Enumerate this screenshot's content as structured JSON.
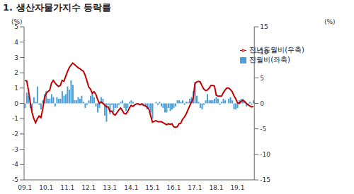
{
  "chart_data": {
    "type": "bar_line",
    "title": "1. 생산자물가지수 등락률",
    "y_label": "(%)",
    "y2_label": "(%)",
    "categories": [
      "09.1",
      null,
      null,
      null,
      null,
      null,
      null,
      null,
      null,
      null,
      null,
      null,
      "10.1",
      null,
      null,
      null,
      null,
      null,
      null,
      null,
      null,
      null,
      null,
      null,
      "11.1",
      null,
      null,
      null,
      null,
      null,
      null,
      null,
      null,
      null,
      null,
      null,
      "12.1",
      null,
      null,
      null,
      null,
      null,
      null,
      null,
      null,
      null,
      null,
      null,
      "13.1",
      null,
      null,
      null,
      null,
      null,
      null,
      null,
      null,
      null,
      null,
      null,
      "14.1",
      null,
      null,
      null,
      null,
      null,
      null,
      null,
      null,
      null,
      null,
      null,
      "15.1",
      null,
      null,
      null,
      null,
      null,
      null,
      null,
      null,
      null,
      null,
      null,
      "16.1",
      null,
      null,
      null,
      null,
      null,
      null,
      null,
      null,
      null,
      null,
      null,
      "17.1",
      null,
      null,
      null,
      null,
      null,
      null,
      null,
      null,
      null,
      null,
      null,
      "18.1",
      null,
      null,
      null,
      null,
      null,
      null,
      null,
      null,
      null,
      null,
      null,
      "19.1",
      null,
      null,
      null,
      null,
      null,
      null,
      null,
      null,
      null
    ],
    "series": [
      {
        "name": "전월비(좌축)",
        "type": "bar",
        "color": "#4a9fd8",
        "values": [
          -0.3,
          0.7,
          0.5,
          -0.3,
          -0.5,
          0.4,
          0.1,
          1.1,
          -0.1,
          -0.4,
          0.2,
          0.6,
          0.8,
          0.3,
          0.3,
          0.6,
          0.4,
          -0.2,
          0.4,
          0.3,
          0.3,
          0.8,
          0.5,
          0.6,
          1.1,
          0.9,
          1.5,
          1.2,
          0.2,
          0.2,
          0.4,
          0.3,
          0.5,
          0.1,
          -0.3,
          -0.1,
          0.2,
          0.5,
          0.7,
          0.4,
          -0.2,
          -0.6,
          -0.3,
          0.4,
          0.3,
          -0.8,
          -1.2,
          -0.1,
          -0.7,
          -0.1,
          -0.6,
          -0.3,
          -0.3,
          -0.1,
          0.1,
          0.2,
          -0.3,
          -0.5,
          -0.3,
          0.1,
          0.2,
          0.1,
          0.0,
          0.0,
          -0.1,
          0.0,
          -0.1,
          -0.1,
          -0.2,
          -0.4,
          -0.3,
          -0.6,
          -1.0,
          0.0,
          0.1,
          -0.1,
          0.1,
          -0.2,
          -0.3,
          -0.6,
          -0.6,
          -0.3,
          -0.5,
          -0.4,
          -0.3,
          -0.2,
          0.2,
          0.2,
          0.1,
          0.2,
          -0.1,
          0.1,
          0.1,
          0.3,
          0.4,
          0.8,
          1.4,
          0.5,
          0.1,
          -0.3,
          -0.4,
          -0.1,
          0.2,
          0.6,
          0.2,
          0.2,
          0.2,
          0.3,
          0.4,
          0.3,
          -0.1,
          0.1,
          0.3,
          0.2,
          0.0,
          0.3,
          0.4,
          0.2,
          -0.4,
          -0.4,
          -0.3,
          0.2,
          0.3,
          0.3,
          0.1,
          -0.2,
          -0.1,
          0.1,
          -0.1,
          0.2
        ]
      },
      {
        "name": "전년동월비(우축)",
        "type": "line",
        "axis": "y2",
        "color": "#c00000",
        "values": [
          4.5,
          4.4,
          2.5,
          0.2,
          -1.8,
          -3.0,
          -3.8,
          -3.0,
          -2.5,
          -2.8,
          -1.2,
          1.0,
          2.0,
          2.3,
          2.6,
          4.0,
          4.5,
          4.0,
          3.6,
          3.3,
          3.5,
          4.5,
          4.3,
          5.3,
          6.2,
          7.0,
          7.5,
          7.9,
          7.6,
          7.3,
          7.0,
          6.8,
          6.5,
          6.3,
          5.5,
          4.4,
          3.2,
          2.8,
          2.0,
          2.3,
          1.8,
          0.8,
          0.0,
          0.3,
          0.0,
          -0.3,
          -0.7,
          -0.7,
          -1.6,
          -1.5,
          -2.1,
          -2.3,
          -1.8,
          -1.3,
          -0.9,
          -1.4,
          -2.0,
          -2.1,
          -1.6,
          -0.9,
          -0.4,
          -0.6,
          -0.3,
          -0.1,
          -0.1,
          -0.3,
          -0.1,
          -0.4,
          -0.5,
          -0.8,
          -1.1,
          -2.5,
          -3.7,
          -3.5,
          -3.4,
          -3.6,
          -3.6,
          -3.6,
          -3.8,
          -4.0,
          -4.2,
          -4.0,
          -4.1,
          -4.0,
          -4.6,
          -4.7,
          -4.6,
          -4.0,
          -3.9,
          -3.1,
          -2.7,
          -2.1,
          -1.3,
          -0.5,
          0.2,
          1.0,
          3.9,
          4.2,
          4.3,
          4.2,
          3.4,
          2.8,
          2.5,
          2.6,
          3.0,
          3.5,
          3.5,
          3.4,
          1.6,
          1.4,
          1.4,
          1.4,
          2.1,
          2.6,
          3.0,
          3.0,
          2.7,
          2.3,
          1.5,
          0.9,
          0.1,
          0.0,
          0.4,
          0.6,
          0.4,
          0.0,
          -0.3,
          -0.5,
          -0.7,
          -0.6
        ]
      }
    ],
    "ylim": [
      -5,
      5
    ],
    "yticks": [
      -5,
      -4,
      -3,
      -2,
      -1,
      0,
      1,
      2,
      3,
      4,
      5
    ],
    "y2lim": [
      -15,
      15
    ],
    "y2ticks": [
      -15,
      -10,
      -5,
      0,
      5,
      10,
      15
    ],
    "grid": false,
    "legend": "upper right"
  }
}
